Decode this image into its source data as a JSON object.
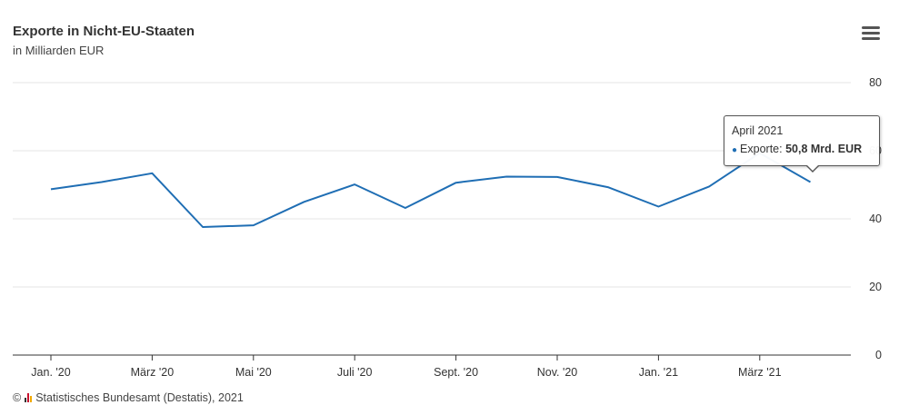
{
  "header": {
    "title": "Exporte in Nicht-EU-Staaten",
    "subtitle": "in Milliarden EUR",
    "menu_icon": "hamburger-menu-icon"
  },
  "tooltip": {
    "header": "April 2021",
    "series_label": "Exporte: ",
    "value_label": "50,8 Mrd. EUR"
  },
  "credits": {
    "copyright": "©",
    "text": "Statistisches Bundesamt (Destatis), 2021",
    "logo_icon": "destatis-logo-icon"
  },
  "colors": {
    "series": "#1f6eb4",
    "grid": "#e6e6e6",
    "axis": "#333333"
  },
  "chart_data": {
    "type": "line",
    "title": "Exporte in Nicht-EU-Staaten",
    "subtitle": "in Milliarden EUR",
    "x": [
      "2020-01",
      "2020-02",
      "2020-03",
      "2020-04",
      "2020-05",
      "2020-06",
      "2020-07",
      "2020-08",
      "2020-09",
      "2020-10",
      "2020-11",
      "2020-12",
      "2021-01",
      "2021-02",
      "2021-03",
      "2021-04"
    ],
    "x_tick_labels": [
      {
        "x": "2020-01",
        "label": "Jan. '20"
      },
      {
        "x": "2020-03",
        "label": "März '20"
      },
      {
        "x": "2020-05",
        "label": "Mai '20"
      },
      {
        "x": "2020-07",
        "label": "Juli '20"
      },
      {
        "x": "2020-09",
        "label": "Sept. '20"
      },
      {
        "x": "2020-11",
        "label": "Nov. '20"
      },
      {
        "x": "2021-01",
        "label": "Jan. '21"
      },
      {
        "x": "2021-03",
        "label": "März '21"
      }
    ],
    "series": [
      {
        "name": "Exporte",
        "values": [
          48.7,
          50.8,
          53.4,
          37.6,
          38.1,
          45.0,
          50.1,
          43.2,
          50.6,
          52.4,
          52.3,
          49.3,
          43.6,
          49.5,
          59.3,
          50.8
        ]
      }
    ],
    "ylim": [
      0,
      80
    ],
    "y_ticks": [
      0,
      20,
      40,
      60,
      80
    ],
    "y_axis_side": "right",
    "xlabel": "",
    "ylabel": "",
    "grid": true,
    "legend": false,
    "highlighted_point": "2021-04"
  }
}
